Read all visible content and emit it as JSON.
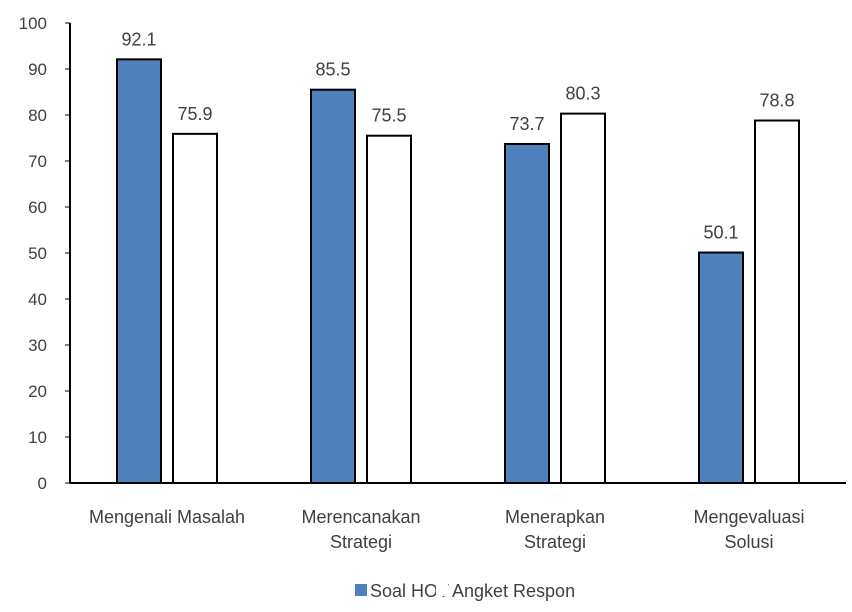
{
  "chart_data": {
    "type": "bar",
    "title": "",
    "xlabel": "",
    "ylabel": "",
    "ylim": [
      0,
      100
    ],
    "yticks": [
      0,
      10,
      20,
      30,
      40,
      50,
      60,
      70,
      80,
      90,
      100
    ],
    "categories": [
      [
        "Mengenali Masalah"
      ],
      [
        "Merencanakan",
        "Strategi"
      ],
      [
        "Menerapkan",
        "Strategi"
      ],
      [
        "Mengevaluasi",
        "Solusi"
      ]
    ],
    "series": [
      {
        "name": "Soal HOT",
        "values": [
          92.1,
          85.5,
          73.7,
          50.1
        ],
        "color": "#4F81BD"
      },
      {
        "name": "Angket Respon",
        "values": [
          75.9,
          75.5,
          80.3,
          78.8
        ],
        "color": "#FFFFFF"
      }
    ],
    "grid": false,
    "legend_position": "bottom",
    "data_labels": true
  }
}
